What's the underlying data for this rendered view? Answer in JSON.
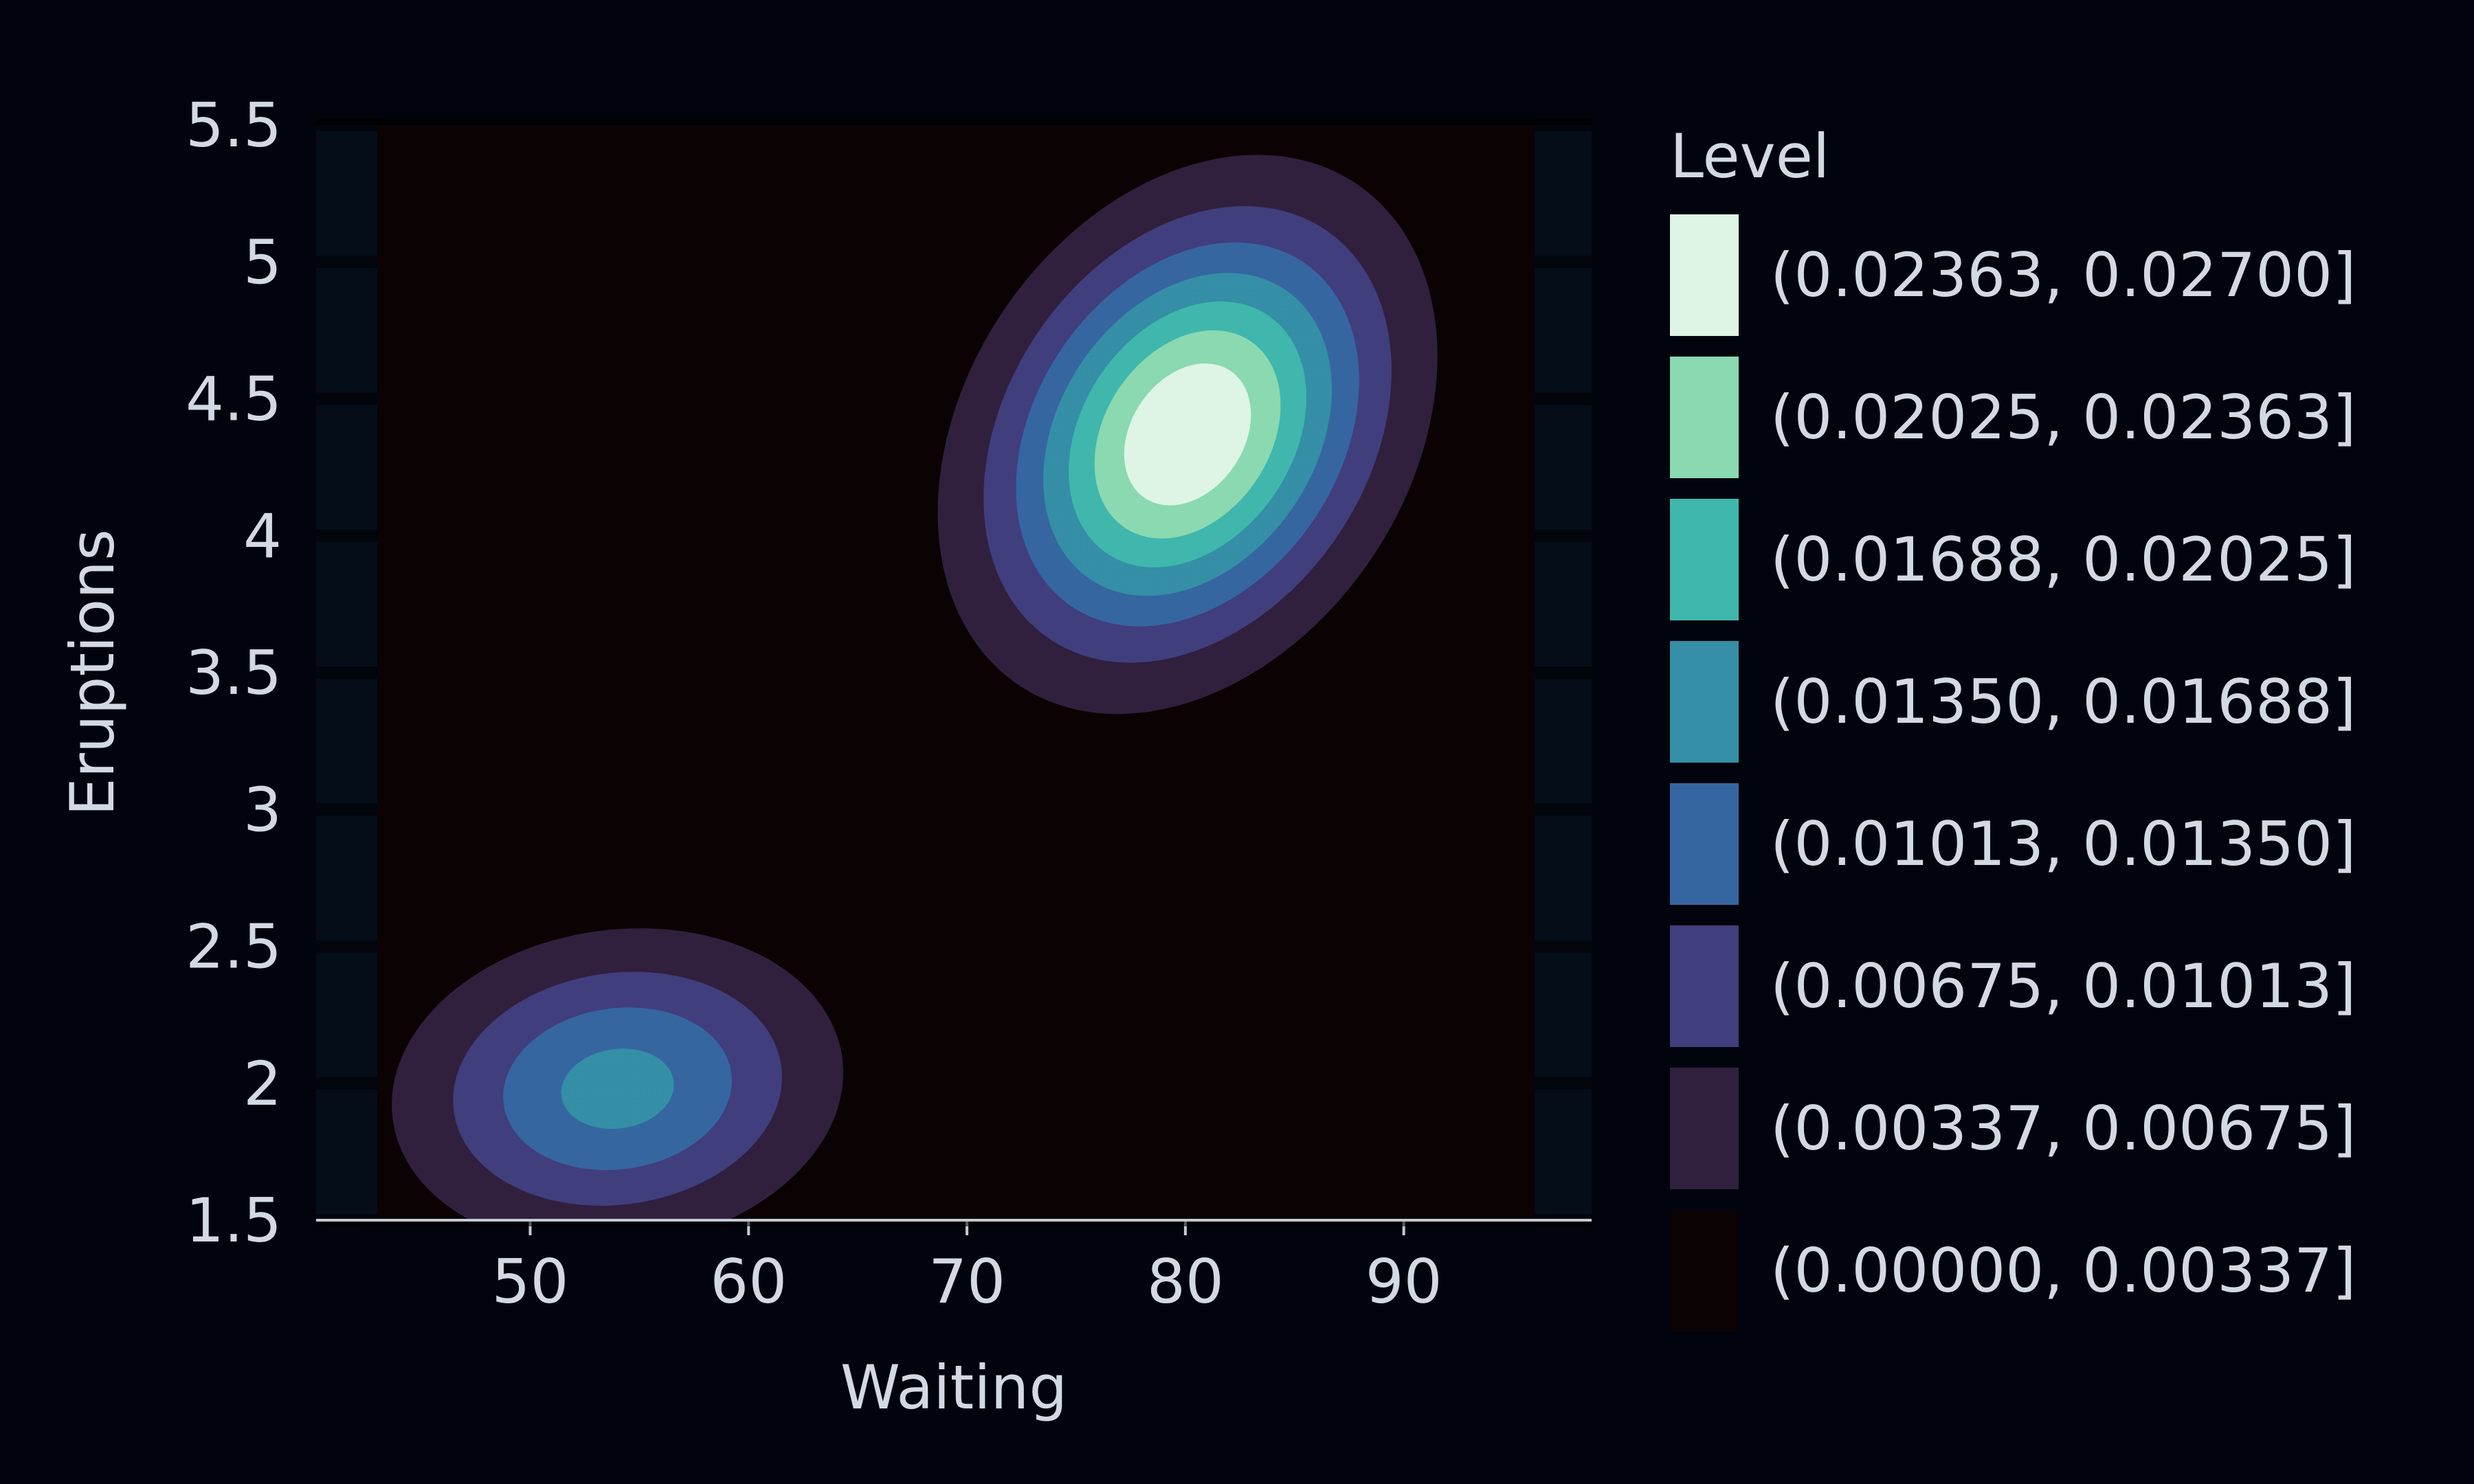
{
  "chart_data": {
    "type": "contour",
    "xlabel": "Waiting",
    "ylabel": "Eruptions",
    "xlim": [
      40.2,
      98.6
    ],
    "ylim": [
      1.5,
      5.5
    ],
    "xticks": [
      50,
      60,
      70,
      80,
      90
    ],
    "yticks": [
      1.5,
      2,
      2.5,
      3,
      3.5,
      4,
      4.5,
      5,
      5.5
    ],
    "grid": false,
    "data_extent": {
      "x": [
        43,
        96
      ],
      "y": [
        1.5,
        5.5
      ]
    },
    "kde_components": [
      {
        "mean_x": 80.1,
        "mean_y": 4.37,
        "sd_x": 5.6,
        "sd_y": 0.5,
        "rho": 0.28,
        "peak": 0.027
      },
      {
        "mean_x": 54.0,
        "mean_y": 1.98,
        "sd_x": 6.0,
        "sd_y": 0.34,
        "rho": 0.1,
        "peak": 0.0148
      }
    ],
    "legend": {
      "title": "Level",
      "placement": "right",
      "entries": [
        {
          "label": "(0.02363, 0.02700]",
          "color": "#def5e5"
        },
        {
          "label": "(0.02025, 0.02363]",
          "color": "#8ad9b1"
        },
        {
          "label": "(0.01688, 0.02025]",
          "color": "#40b7ad"
        },
        {
          "label": "(0.01350, 0.01688]",
          "color": "#348fa7"
        },
        {
          "label": "(0.01013, 0.01350]",
          "color": "#3666a0"
        },
        {
          "label": "(0.00675, 0.01013]",
          "color": "#413e7e"
        },
        {
          "label": "(0.00337, 0.00675]",
          "color": "#30203e"
        },
        {
          "label": "(0.00000, 0.00337]",
          "color": "#0b0303"
        }
      ]
    },
    "level_bounds": [
      0.0,
      0.00337,
      0.00675,
      0.01013,
      0.0135,
      0.01688,
      0.02025,
      0.02363,
      0.027
    ]
  },
  "colors": {
    "background": "#02040d",
    "axes_face": "#050d19",
    "axis_line": "#c3cad4",
    "text": "#d3d9e2"
  }
}
